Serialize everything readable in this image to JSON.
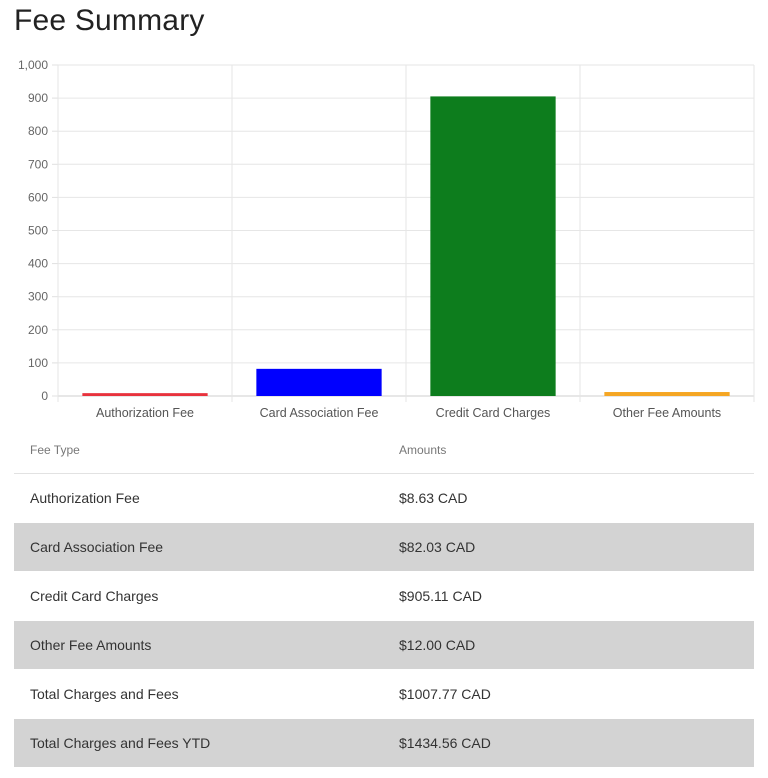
{
  "page": {
    "title": "Fee Summary"
  },
  "chart_data": {
    "type": "bar",
    "title": "",
    "xlabel": "",
    "ylabel": "",
    "ylim": [
      0,
      1000
    ],
    "yticks": [
      "0",
      "100",
      "200",
      "300",
      "400",
      "500",
      "600",
      "700",
      "800",
      "900",
      "1,000"
    ],
    "grid": true,
    "categories": [
      "Authorization Fee",
      "Card Association Fee",
      "Credit Card Charges",
      "Other Fee Amounts"
    ],
    "values": [
      8.63,
      82.03,
      905.11,
      12.0
    ],
    "colors": [
      "#e8323c",
      "#0000ff",
      "#0d7d1d",
      "#f5a623"
    ]
  },
  "table": {
    "headers": {
      "type": "Fee Type",
      "amount": "Amounts"
    },
    "rows": [
      {
        "type": "Authorization Fee",
        "amount": "$8.63 CAD"
      },
      {
        "type": "Card Association Fee",
        "amount": "$82.03 CAD"
      },
      {
        "type": "Credit Card Charges",
        "amount": "$905.11 CAD"
      },
      {
        "type": "Other Fee Amounts",
        "amount": "$12.00 CAD"
      },
      {
        "type": "Total Charges and Fees",
        "amount": "$1007.77 CAD"
      },
      {
        "type": "Total Charges and Fees YTD",
        "amount": "$1434.56 CAD"
      }
    ]
  }
}
